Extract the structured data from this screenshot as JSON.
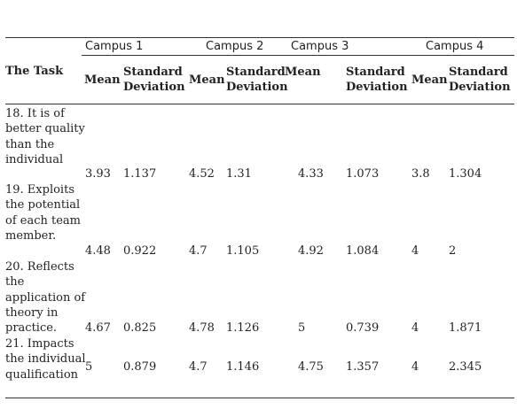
{
  "table": {
    "campus_headers": [
      "Campus 1",
      "Campus 2",
      "Campus 3",
      "Campus 4"
    ],
    "task_header": "The Task",
    "mean_label": "Mean",
    "sd_label_line1": "Standard",
    "sd_label_line2": "Deviation",
    "rows": [
      {
        "task": "18. It is of better quality than the individual",
        "values": [
          "3.93",
          "1.137",
          "4.52",
          "1.31",
          "4.33",
          "1.073",
          "3.8",
          "1.304"
        ]
      },
      {
        "task": "19. Exploits the potential of each team member.",
        "values": [
          "4.48",
          "0.922",
          "4.7",
          "1.105",
          "4.92",
          "1.084",
          "4",
          "2"
        ]
      },
      {
        "task": "20. Reflects the application of theory in practice.",
        "values": [
          "4.67",
          "0.825",
          "4.78",
          "1.126",
          "5",
          "0.739",
          "4",
          "1.871"
        ]
      },
      {
        "task": "21. Impacts the individual qualification",
        "values": [
          "5",
          "0.879",
          "4.7",
          "1.146",
          "4.75",
          "1.357",
          "4",
          "2.345"
        ]
      }
    ]
  }
}
